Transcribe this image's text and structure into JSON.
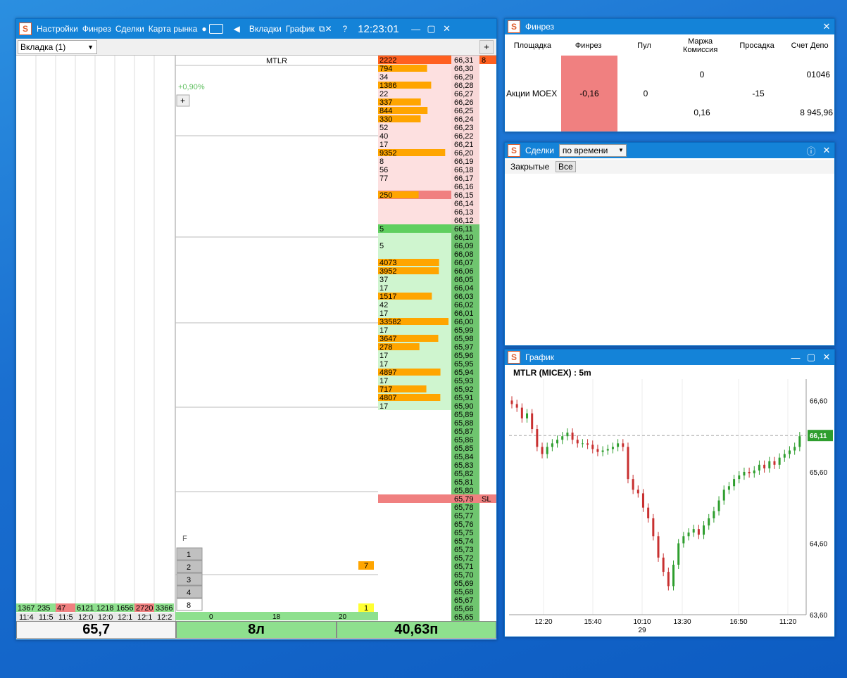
{
  "main": {
    "menu": [
      "Настройки",
      "Финрез",
      "Сделки",
      "Карта рынка"
    ],
    "menu2": [
      "Вкладки",
      "График"
    ],
    "help": "?",
    "clock": "12:23:01",
    "tab_label": "Вкладка (1)",
    "add_tab": "+",
    "ticker": "MTLR",
    "change": "+0,90%",
    "plus_btn": "+",
    "filter_label": "F",
    "bottom_left": "65,7",
    "bottom_mid": "8л",
    "bottom_right": "40,63п",
    "sl_label": "SL",
    "order_qty": "8",
    "lot_inputs": [
      "1",
      "2",
      "3",
      "4",
      "8"
    ],
    "order_badge": "7",
    "order_badge2": "1",
    "axis_bottom": [
      "0",
      "18",
      "20"
    ],
    "cluster_times": [
      "11:4",
      "11:5",
      "11:5",
      "12:0",
      "12:0",
      "12:1",
      "12:1",
      "12:2"
    ],
    "cluster_totals": [
      "1367",
      "235",
      "47",
      "6121",
      "1218",
      "1656",
      "2720",
      "3366"
    ]
  },
  "orderbook": {
    "prices": [
      "66,31",
      "66,30",
      "66,29",
      "66,28",
      "66,27",
      "66,26",
      "66,25",
      "66,24",
      "66,23",
      "66,22",
      "66,21",
      "66,20",
      "66,19",
      "66,18",
      "66,17",
      "66,16",
      "66,15",
      "66,14",
      "66,13",
      "66,12",
      "66,11",
      "66,10",
      "66,09",
      "66,08",
      "66,07",
      "66,06",
      "66,05",
      "66,04",
      "66,03",
      "66,02",
      "66,01",
      "66,00",
      "65,99",
      "65,98",
      "65,97",
      "65,96",
      "65,95",
      "65,94",
      "65,93",
      "65,92",
      "65,91",
      "65,90",
      "65,89",
      "65,88",
      "65,87",
      "65,86",
      "65,85",
      "65,84",
      "65,83",
      "65,82",
      "65,81",
      "65,80",
      "65,79",
      "65,78",
      "65,77",
      "65,76",
      "65,75",
      "65,74",
      "65,73",
      "65,72",
      "65,71",
      "65,70",
      "65,69",
      "65,68",
      "65,67",
      "65,66",
      "65,65"
    ],
    "volumes": [
      "2222",
      "794",
      "34",
      "1386",
      "22",
      "337",
      "844",
      "330",
      "52",
      "40",
      "17",
      "9352",
      "8",
      "56",
      "77",
      "",
      "250",
      "",
      "",
      "",
      "5",
      "",
      "5",
      "",
      "4073",
      "3952",
      "37",
      "17",
      "1517",
      "42",
      "17",
      "33582",
      "17",
      "3647",
      "278",
      "17",
      "17",
      "4897",
      "17",
      "717",
      "4807",
      "17",
      "",
      "",
      "",
      "",
      "",
      "",
      "",
      "",
      "",
      "",
      "",
      "",
      "",
      "",
      "",
      "",
      "",
      "",
      "",
      "",
      "",
      "",
      "",
      "",
      ""
    ]
  },
  "finrez": {
    "title": "Финрез",
    "headers": [
      "Площадка",
      "Финрез",
      "Пул",
      "Маржа Комиссия",
      "Просадка",
      "Счет Депо"
    ],
    "row": {
      "venue": "Акции MOEX",
      "finrez": "-0,16",
      "pool": "0",
      "margin": "0",
      "commission": "0,16",
      "drawdown": "-15",
      "account": "01046",
      "deposit": "8 945,96"
    }
  },
  "deals": {
    "title": "Сделки",
    "sort": "по времени",
    "tab_closed": "Закрытые",
    "tab_all": "Все"
  },
  "chart_window": {
    "title": "График",
    "chart_label": "MTLR (MICEX) : 5m",
    "price_tag": "66,11"
  },
  "chart_data": {
    "type": "candlestick",
    "title": "MTLR (MICEX) : 5m",
    "y_ticks": [
      "66,60",
      "65,60",
      "64,60",
      "63,60"
    ],
    "x_ticks": [
      "12:20",
      "15:40",
      "10:10",
      "13:30",
      "16:50",
      "11:20"
    ],
    "x_sub": "29",
    "ylim": [
      63.6,
      66.9
    ],
    "last_price": 66.11,
    "closes": [
      66.55,
      66.5,
      66.35,
      66.42,
      66.2,
      65.95,
      65.85,
      65.95,
      66.0,
      66.05,
      66.1,
      66.15,
      66.05,
      66.0,
      66.0,
      65.98,
      65.92,
      65.88,
      65.9,
      65.92,
      65.95,
      66.0,
      65.95,
      65.5,
      65.35,
      65.3,
      65.1,
      64.95,
      64.7,
      64.4,
      64.2,
      64.0,
      64.3,
      64.6,
      64.7,
      64.75,
      64.8,
      64.72,
      64.85,
      64.95,
      65.05,
      65.2,
      65.35,
      65.4,
      65.5,
      65.55,
      65.6,
      65.58,
      65.62,
      65.7,
      65.65,
      65.75,
      65.7,
      65.8,
      65.85,
      65.9,
      65.95,
      66.1
    ]
  },
  "colors": {
    "accent": "#1483d8",
    "green": "#5fbf5f",
    "red": "#e86a6a",
    "orange": "#ffa500"
  }
}
